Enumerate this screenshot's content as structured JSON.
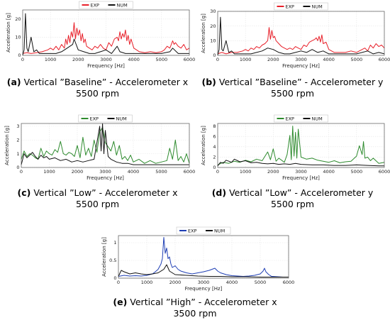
{
  "chart_data": [
    {
      "id": "a",
      "type": "line",
      "caption_label": "(a)",
      "caption_line1": "Vertical ”Baseline” - Accelerometer x",
      "caption_line2": "5500 rpm",
      "xlabel": "Frequency [Hz]",
      "ylabel": "Acceleration [g]",
      "xlim": [
        0,
        6000
      ],
      "ylim": [
        0,
        25
      ],
      "xticks": [
        0,
        1000,
        2000,
        3000,
        4000,
        5000,
        6000
      ],
      "yticks": [
        0,
        10,
        20
      ],
      "grid": true,
      "legend": "top",
      "series": [
        {
          "name": "EXP",
          "color": "#e8202a",
          "x": [
            0,
            150,
            300,
            500,
            700,
            900,
            1000,
            1100,
            1200,
            1300,
            1400,
            1500,
            1550,
            1600,
            1650,
            1700,
            1750,
            1800,
            1850,
            1900,
            1950,
            2000,
            2050,
            2100,
            2150,
            2200,
            2250,
            2300,
            2400,
            2500,
            2600,
            2700,
            2800,
            2900,
            3000,
            3100,
            3200,
            3300,
            3400,
            3450,
            3500,
            3550,
            3600,
            3650,
            3700,
            3750,
            3800,
            3850,
            3900,
            4000,
            4100,
            4200,
            4400,
            4600,
            4800,
            5000,
            5100,
            5200,
            5300,
            5400,
            5450,
            5500,
            5600,
            5700,
            5800,
            5900,
            6000
          ],
          "y": [
            1,
            1.5,
            1,
            1.5,
            2,
            3,
            4,
            3,
            5,
            3,
            6,
            4,
            9,
            6,
            11,
            7,
            13,
            10,
            18,
            9,
            15,
            11,
            14,
            8,
            12,
            7,
            9,
            5,
            4,
            3,
            5,
            4,
            6,
            4,
            3,
            7,
            5,
            9,
            10,
            8,
            13,
            9,
            12,
            10,
            14,
            8,
            11,
            6,
            9,
            4,
            3,
            2,
            1.5,
            2,
            1.5,
            2,
            3,
            5,
            4,
            8,
            6,
            7,
            5,
            4,
            6,
            3,
            4
          ]
        },
        {
          "name": "NUM",
          "color": "#111111",
          "x": [
            0,
            50,
            100,
            150,
            200,
            300,
            400,
            500,
            600,
            800,
            1000,
            1200,
            1400,
            1600,
            1800,
            1850,
            2000,
            2200,
            2400,
            2600,
            2800,
            3000,
            3200,
            3400,
            3500,
            3700,
            3900,
            4100,
            4300,
            4500,
            4800,
            5000,
            5300,
            5400,
            5600,
            5800,
            6000
          ],
          "y": [
            0,
            3,
            23,
            4,
            2,
            10,
            2,
            3,
            1,
            1,
            1,
            1,
            2,
            4,
            6,
            9,
            3,
            2,
            1,
            1,
            2,
            3,
            1,
            5,
            2,
            1,
            1,
            1,
            1,
            1,
            1,
            1,
            2,
            4,
            1,
            1,
            1
          ]
        }
      ]
    },
    {
      "id": "b",
      "type": "line",
      "caption_label": "(b)",
      "caption_line1": "Vertical ”Baseline” - Accelerometer y",
      "caption_line2": "5500 rpm",
      "xlabel": "Frequency [Hz]",
      "ylabel": "Acceleration [g]",
      "xlim": [
        0,
        6000
      ],
      "ylim": [
        0,
        30
      ],
      "xticks": [
        0,
        1000,
        2000,
        3000,
        4000,
        5000,
        6000
      ],
      "yticks": [
        0,
        10,
        20,
        30
      ],
      "grid": true,
      "legend": "top",
      "series": [
        {
          "name": "EXP",
          "color": "#e8202a",
          "x": [
            0,
            150,
            300,
            500,
            700,
            900,
            1000,
            1100,
            1200,
            1300,
            1400,
            1500,
            1600,
            1700,
            1750,
            1800,
            1850,
            1900,
            1950,
            2000,
            2050,
            2100,
            2200,
            2300,
            2400,
            2500,
            2600,
            2700,
            2800,
            2900,
            3000,
            3100,
            3200,
            3300,
            3400,
            3500,
            3550,
            3600,
            3650,
            3700,
            3750,
            3800,
            3900,
            4000,
            4100,
            4200,
            4400,
            4600,
            4800,
            5000,
            5200,
            5300,
            5400,
            5500,
            5600,
            5700,
            5800,
            5900,
            6000
          ],
          "y": [
            1,
            2,
            1,
            2,
            2,
            3,
            4,
            3,
            5,
            4,
            6,
            5,
            7,
            8,
            9,
            10,
            19,
            11,
            17,
            12,
            13,
            10,
            8,
            6,
            5,
            4,
            5,
            4,
            6,
            5,
            4,
            7,
            6,
            9,
            10,
            11,
            12,
            10,
            13,
            9,
            14,
            8,
            9,
            4,
            3,
            2,
            2,
            2,
            3,
            2,
            4,
            5,
            3,
            7,
            5,
            8,
            6,
            7,
            5
          ]
        },
        {
          "name": "NUM",
          "color": "#111111",
          "x": [
            0,
            50,
            100,
            150,
            200,
            300,
            400,
            500,
            600,
            800,
            1000,
            1200,
            1400,
            1600,
            1800,
            2000,
            2200,
            2400,
            2600,
            2800,
            3000,
            3200,
            3400,
            3600,
            3800,
            4000,
            4300,
            4600,
            5000,
            5200,
            5400,
            5600,
            5800,
            6000
          ],
          "y": [
            0,
            4,
            26,
            4,
            3,
            10,
            2,
            3,
            1,
            1,
            1,
            1,
            2,
            3,
            5,
            4,
            2,
            1,
            1,
            2,
            3,
            2,
            4,
            2,
            3,
            1,
            1,
            1,
            1,
            2,
            3,
            1,
            2,
            1
          ]
        }
      ]
    },
    {
      "id": "c",
      "type": "line",
      "caption_label": "(c)",
      "caption_line1": "Vertical ”Low” - Accelerometer x",
      "caption_line2": "5500 rpm",
      "xlabel": "Frequency [Hz]",
      "ylabel": "Acceleration [g]",
      "xlim": [
        0,
        6000
      ],
      "ylim": [
        0,
        3.2
      ],
      "xticks": [
        0,
        1000,
        2000,
        3000,
        4000,
        5000,
        6000
      ],
      "yticks": [
        0,
        1,
        2,
        3
      ],
      "grid": true,
      "legend": "top",
      "series": [
        {
          "name": "EXP",
          "color": "#2e8b2e",
          "x": [
            0,
            100,
            200,
            300,
            400,
            500,
            600,
            700,
            800,
            900,
            1000,
            1100,
            1200,
            1300,
            1400,
            1500,
            1600,
            1700,
            1800,
            1900,
            2000,
            2100,
            2200,
            2300,
            2400,
            2500,
            2600,
            2700,
            2800,
            2900,
            3000,
            3100,
            3200,
            3300,
            3400,
            3500,
            3600,
            3700,
            3800,
            3900,
            4000,
            4200,
            4400,
            4600,
            4800,
            5000,
            5200,
            5300,
            5400,
            5500,
            5600,
            5700,
            5800,
            5900,
            6000
          ],
          "y": [
            0.6,
            1.2,
            0.8,
            1.0,
            0.9,
            0.7,
            0.6,
            1.4,
            0.8,
            1.2,
            1.0,
            0.9,
            1.3,
            1.1,
            1.9,
            1.0,
            0.9,
            1.1,
            1.0,
            0.8,
            1.6,
            0.7,
            2.2,
            0.9,
            1.4,
            0.8,
            2.0,
            1.1,
            2.6,
            2.9,
            1.8,
            1.5,
            1.2,
            1.9,
            0.9,
            1.6,
            0.6,
            0.8,
            0.5,
            0.9,
            0.4,
            0.6,
            0.3,
            0.5,
            0.3,
            0.4,
            0.5,
            1.4,
            0.6,
            2.0,
            0.5,
            0.8,
            0.4,
            1.0,
            0.3
          ]
        },
        {
          "name": "NUM",
          "color": "#111111",
          "x": [
            0,
            100,
            200,
            300,
            400,
            500,
            600,
            700,
            800,
            900,
            1000,
            1200,
            1400,
            1600,
            1800,
            2000,
            2200,
            2400,
            2600,
            2800,
            2850,
            2900,
            2950,
            3000,
            3100,
            3200,
            3400,
            3600,
            3800,
            4000,
            4500,
            5000,
            5500,
            6000
          ],
          "y": [
            0.2,
            1.0,
            0.7,
            0.9,
            1.1,
            0.8,
            0.6,
            0.9,
            0.7,
            0.8,
            0.6,
            0.7,
            0.5,
            0.6,
            0.4,
            0.5,
            0.4,
            0.5,
            0.6,
            3.0,
            1.2,
            3.2,
            1.0,
            2.7,
            0.8,
            0.6,
            0.4,
            0.3,
            0.3,
            0.2,
            0.2,
            0.2,
            0.2,
            0.2
          ]
        }
      ]
    },
    {
      "id": "d",
      "type": "line",
      "caption_label": "(d)",
      "caption_line1": "Vertical ”Low” - Accelerometer y",
      "caption_line2": "5500 rpm",
      "xlabel": "Frequency [Hz]",
      "ylabel": "Acceleration [g]",
      "xlim": [
        0,
        6000
      ],
      "ylim": [
        0,
        8.5
      ],
      "xticks": [
        0,
        1000,
        2000,
        3000,
        4000,
        5000,
        6000
      ],
      "yticks": [
        0,
        2,
        4,
        6,
        8
      ],
      "grid": true,
      "legend": "top",
      "series": [
        {
          "name": "EXP",
          "color": "#2e8b2e",
          "x": [
            0,
            200,
            400,
            600,
            800,
            1000,
            1200,
            1400,
            1600,
            1800,
            1900,
            2000,
            2100,
            2200,
            2400,
            2500,
            2600,
            2650,
            2700,
            2750,
            2800,
            2850,
            2900,
            3000,
            3200,
            3400,
            3600,
            3800,
            4000,
            4200,
            4400,
            4600,
            4800,
            5000,
            5100,
            5200,
            5250,
            5300,
            5400,
            5500,
            5600,
            5800,
            6000
          ],
          "y": [
            0.5,
            1.0,
            0.8,
            1.2,
            1.0,
            1.4,
            1.1,
            1.6,
            1.3,
            3.0,
            1.5,
            3.6,
            1.2,
            1.8,
            1.0,
            2.5,
            6.2,
            1.5,
            8.0,
            2.2,
            6.8,
            1.8,
            7.4,
            2.0,
            1.6,
            1.8,
            1.4,
            1.2,
            1.0,
            1.3,
            0.9,
            1.1,
            1.2,
            2.2,
            4.2,
            2.5,
            5.0,
            1.8,
            2.0,
            1.3,
            1.8,
            0.8,
            1.0
          ]
        },
        {
          "name": "NUM",
          "color": "#111111",
          "x": [
            0,
            100,
            200,
            300,
            400,
            500,
            600,
            800,
            1000,
            1200,
            1400,
            1600,
            1800,
            2000,
            2200,
            2400,
            2600,
            2800,
            3000,
            3400,
            3800,
            4200,
            4600,
            5000,
            5400,
            5800,
            6000
          ],
          "y": [
            0.3,
            1.0,
            0.8,
            1.4,
            1.2,
            1.0,
            1.6,
            1.1,
            1.3,
            0.9,
            1.0,
            0.8,
            0.7,
            0.8,
            0.6,
            0.7,
            0.6,
            0.8,
            0.6,
            0.5,
            0.5,
            0.4,
            0.4,
            0.5,
            0.4,
            0.3,
            0.3
          ]
        }
      ]
    },
    {
      "id": "e",
      "type": "line",
      "caption_label": "(e)",
      "caption_line1": "Vertical ”High” - Accelerometer x",
      "caption_line2": "3500 rpm",
      "xlabel": "Frequency [Hz]",
      "ylabel": "Acceleration [g]",
      "xlim": [
        0,
        6000
      ],
      "ylim": [
        0,
        1.2
      ],
      "xticks": [
        0,
        1000,
        2000,
        3000,
        4000,
        5000,
        6000
      ],
      "yticks": [
        0,
        0.5,
        1
      ],
      "grid": true,
      "legend": "top",
      "series": [
        {
          "name": "EXP",
          "color": "#1f3fb4",
          "x": [
            0,
            200,
            400,
            600,
            800,
            1000,
            1200,
            1300,
            1400,
            1500,
            1550,
            1600,
            1650,
            1700,
            1750,
            1800,
            1850,
            1900,
            2000,
            2100,
            2200,
            2400,
            2600,
            2800,
            3000,
            3200,
            3400,
            3500,
            3600,
            3800,
            4000,
            4200,
            4400,
            4600,
            4800,
            5000,
            5100,
            5150,
            5200,
            5300,
            5400,
            5600,
            5800,
            6000
          ],
          "y": [
            0.05,
            0.08,
            0.06,
            0.07,
            0.06,
            0.08,
            0.12,
            0.18,
            0.25,
            0.4,
            0.55,
            1.15,
            0.7,
            0.85,
            0.55,
            0.6,
            0.4,
            0.3,
            0.35,
            0.25,
            0.2,
            0.15,
            0.12,
            0.15,
            0.18,
            0.22,
            0.28,
            0.2,
            0.15,
            0.1,
            0.07,
            0.06,
            0.05,
            0.06,
            0.08,
            0.12,
            0.2,
            0.28,
            0.18,
            0.1,
            0.05,
            0.04,
            0.03,
            0.03
          ]
        },
        {
          "name": "NUM",
          "color": "#111111",
          "x": [
            0,
            100,
            200,
            300,
            400,
            600,
            800,
            1000,
            1200,
            1400,
            1600,
            1700,
            1800,
            2000,
            2400,
            2800,
            3200,
            3600,
            4000,
            4500,
            5000,
            5500,
            6000
          ],
          "y": [
            0.05,
            0.22,
            0.18,
            0.15,
            0.12,
            0.15,
            0.12,
            0.1,
            0.12,
            0.15,
            0.25,
            0.38,
            0.2,
            0.1,
            0.08,
            0.06,
            0.05,
            0.05,
            0.04,
            0.04,
            0.03,
            0.03,
            0.03
          ]
        }
      ]
    }
  ]
}
